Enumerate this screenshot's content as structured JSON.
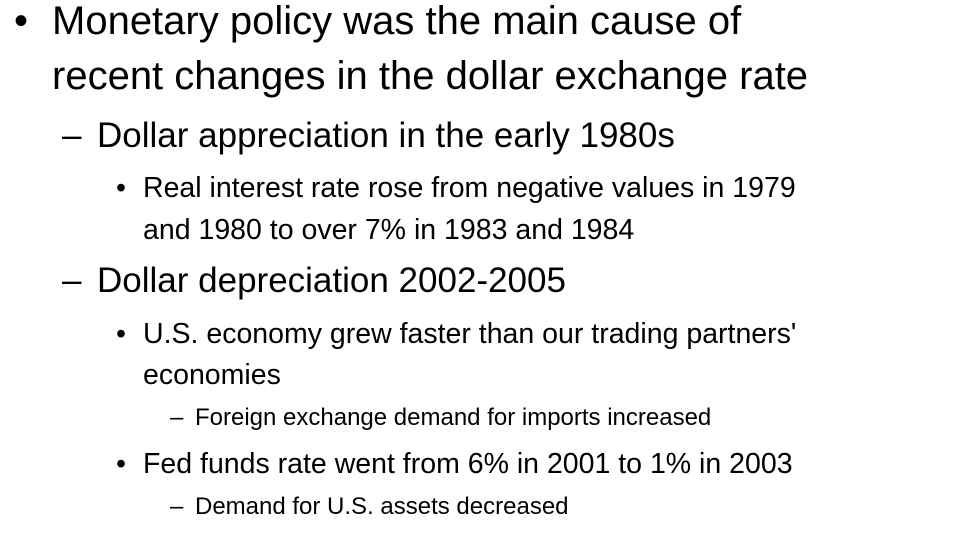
{
  "slide": {
    "bullets": [
      {
        "marker": "•",
        "lines": [
          "Monetary policy was the main cause of",
          "recent changes in the dollar exchange rate"
        ]
      },
      {
        "marker": "–",
        "lines": [
          "Dollar appreciation in the early 1980s"
        ]
      },
      {
        "marker": "•",
        "lines": [
          "Real interest rate rose from negative values in 1979",
          "and 1980 to over 7% in 1983 and 1984"
        ]
      },
      {
        "marker": "–",
        "lines": [
          "Dollar depreciation 2002-2005"
        ]
      },
      {
        "marker": "•",
        "lines": [
          "U.S. economy grew faster than our trading partners'",
          "economies"
        ]
      },
      {
        "marker": "–",
        "lines": [
          "Foreign exchange demand for imports increased"
        ]
      },
      {
        "marker": "•",
        "lines": [
          "Fed funds rate went from 6% in 2001 to 1% in 2003"
        ]
      },
      {
        "marker": "–",
        "lines": [
          "Demand for U.S. assets decreased"
        ]
      }
    ]
  }
}
